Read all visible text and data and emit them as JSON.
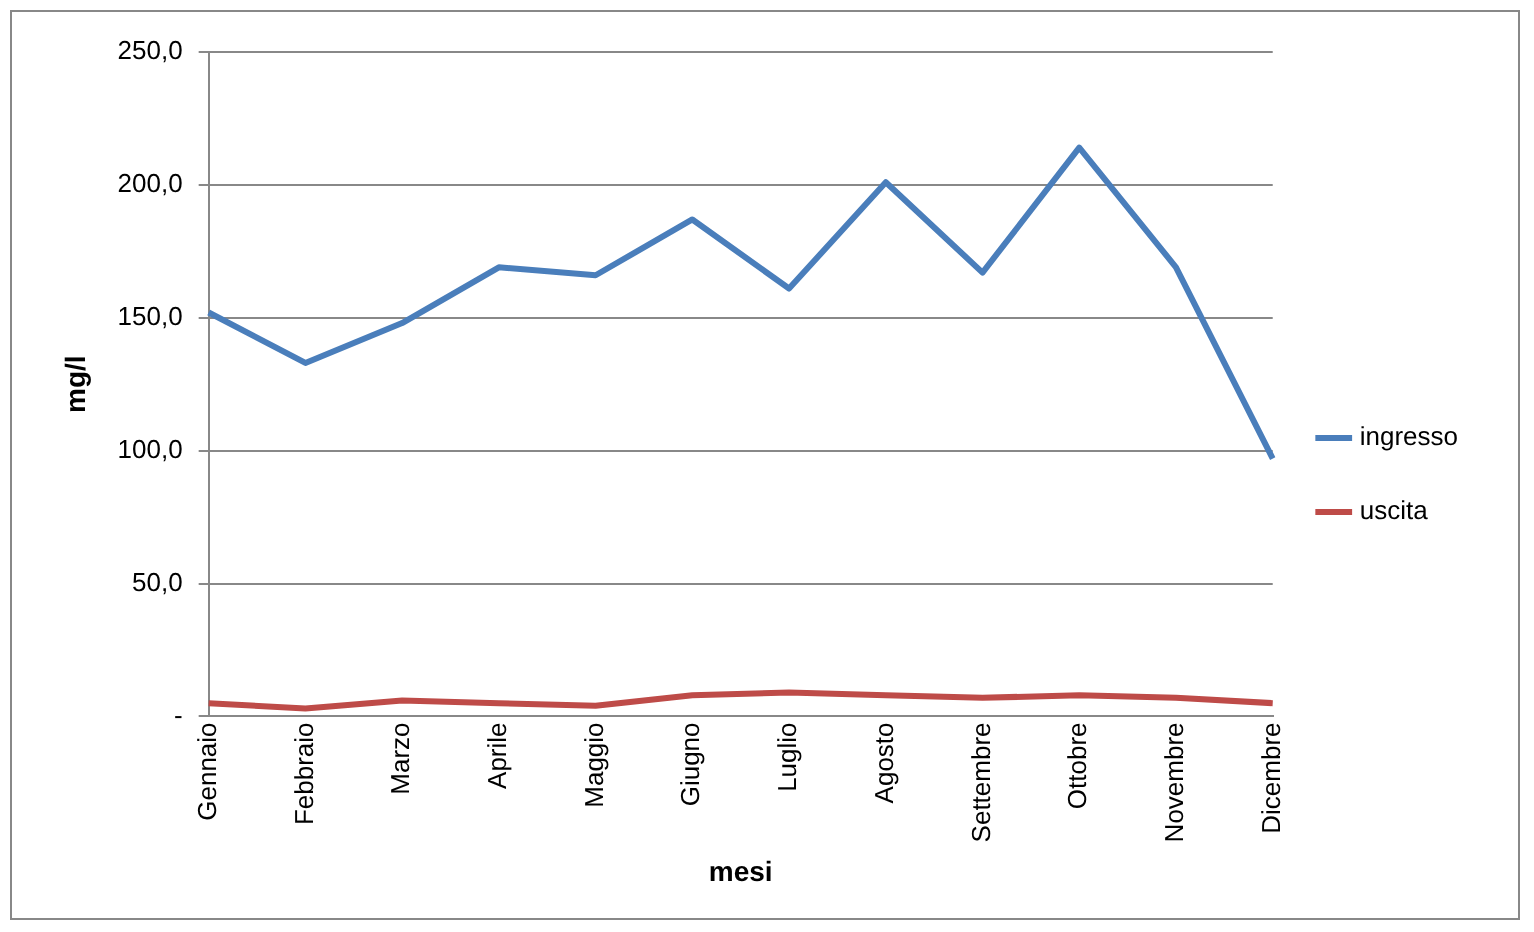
{
  "chart_data": {
    "type": "line",
    "xlabel": "mesi",
    "ylabel": "mg/l",
    "categories": [
      "Gennaio",
      "Febbraio",
      "Marzo",
      "Aprile",
      "Maggio",
      "Giugno",
      "Luglio",
      "Agosto",
      "Settembre",
      "Ottobre",
      "Novembre",
      "Dicembre"
    ],
    "series": [
      {
        "name": "ingresso",
        "color": "#4a7ebb",
        "values": [
          152,
          133,
          148,
          169,
          166,
          187,
          161,
          201,
          167,
          214,
          169,
          97
        ]
      },
      {
        "name": "uscita",
        "color": "#be4b48",
        "values": [
          5,
          3,
          6,
          5,
          4,
          8,
          9,
          8,
          7,
          8,
          7,
          5
        ]
      }
    ],
    "ylim": [
      0,
      250
    ],
    "yticks": [
      {
        "value": 0,
        "label": "-"
      },
      {
        "value": 50,
        "label": "50,0"
      },
      {
        "value": 100,
        "label": "100,0"
      },
      {
        "value": 150,
        "label": "150,0"
      },
      {
        "value": 200,
        "label": "200,0"
      },
      {
        "value": 250,
        "label": "250,0"
      }
    ],
    "grid": "y",
    "legend": "right",
    "marker": "none",
    "line_style": "solid"
  }
}
